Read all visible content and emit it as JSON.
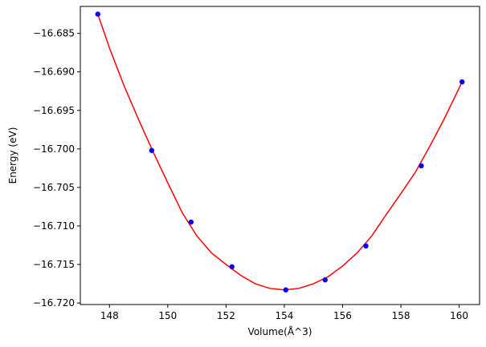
{
  "chart_data": {
    "type": "scatter",
    "title": "",
    "xlabel": "Volume(Å^3)",
    "ylabel": "Energy (eV)",
    "xlim": [
      147.0,
      160.7
    ],
    "ylim": [
      -16.7202,
      -16.6815
    ],
    "x_ticks": [
      148,
      150,
      152,
      154,
      156,
      158,
      160
    ],
    "x_tick_labels": [
      "148",
      "150",
      "152",
      "154",
      "156",
      "158",
      "160"
    ],
    "y_ticks": [
      -16.685,
      -16.69,
      -16.695,
      -16.7,
      -16.705,
      -16.71,
      -16.715,
      -16.72
    ],
    "y_tick_labels": [
      "−16.685",
      "−16.690",
      "−16.695",
      "−16.700",
      "−16.705",
      "−16.710",
      "−16.715",
      "−16.720"
    ],
    "grid": false,
    "series": [
      {
        "type": "scatter",
        "color": "#0000ff",
        "x": [
          147.6,
          149.45,
          150.8,
          152.2,
          154.05,
          155.4,
          156.8,
          158.7,
          160.1
        ],
        "y": [
          -16.6825,
          -16.7002,
          -16.7095,
          -16.7153,
          -16.7183,
          -16.717,
          -16.7126,
          -16.7022,
          -16.6913
        ]
      },
      {
        "type": "line",
        "color": "#ff0000",
        "x": [
          147.6,
          148.0,
          148.5,
          149.0,
          149.5,
          150.0,
          150.5,
          151.0,
          151.5,
          152.0,
          152.5,
          153.0,
          153.5,
          154.0,
          154.5,
          155.0,
          155.5,
          156.0,
          156.5,
          157.0,
          157.5,
          158.0,
          158.5,
          159.0,
          159.5,
          160.1
        ],
        "y": [
          -16.6825,
          -16.6869,
          -16.6918,
          -16.6962,
          -16.7004,
          -16.7044,
          -16.7083,
          -16.7113,
          -16.7135,
          -16.715,
          -16.7164,
          -16.7175,
          -16.7181,
          -16.7183,
          -16.7181,
          -16.7175,
          -16.7166,
          -16.7152,
          -16.7135,
          -16.7113,
          -16.7085,
          -16.7058,
          -16.703,
          -16.6996,
          -16.696,
          -16.6913
        ]
      }
    ]
  }
}
